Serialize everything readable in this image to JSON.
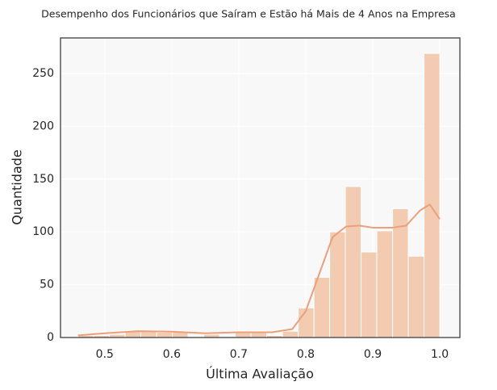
{
  "chart_data": {
    "type": "histogram",
    "title": "Desempenho dos Funcionários que Saíram e Estão há Mais de 4 Anos na Empresa",
    "x_label": "Última Avaliação",
    "y_label": "Quantidade",
    "bins": [
      0.46,
      0.4835,
      0.507,
      0.5304,
      0.5539,
      0.5774,
      0.6009,
      0.6243,
      0.6478,
      0.6713,
      0.6948,
      0.7183,
      0.7417,
      0.7652,
      0.7887,
      0.8122,
      0.8357,
      0.8591,
      0.8826,
      0.9061,
      0.9296,
      0.953,
      0.9765,
      1.0
    ],
    "counts": [
      2,
      2,
      3,
      6,
      6,
      5,
      5,
      0,
      3,
      0,
      6,
      6,
      2,
      6,
      28,
      57,
      100,
      143,
      81,
      101,
      122,
      77,
      269
    ],
    "color": "#f3cbb0",
    "kde": {
      "color": "#eba07c",
      "x": [
        0.46,
        0.5,
        0.55,
        0.6,
        0.65,
        0.7,
        0.75,
        0.78,
        0.8,
        0.82,
        0.84,
        0.86,
        0.88,
        0.9,
        0.93,
        0.95,
        0.97,
        0.985,
        1.0
      ],
      "values": [
        2,
        4,
        6,
        5.5,
        4,
        5,
        5,
        8,
        25,
        60,
        95,
        105,
        106,
        104,
        104,
        106,
        120,
        126,
        112
      ]
    },
    "xlim": [
      0.434,
      1.03
    ],
    "ylim": [
      0,
      283.6
    ],
    "xticks": [
      0.5,
      0.6,
      0.7,
      0.8,
      0.9,
      {
        "value": 1,
        "label": "1.0"
      }
    ],
    "yticks": [
      0,
      50,
      100,
      150,
      200,
      250
    ],
    "grid": true
  }
}
